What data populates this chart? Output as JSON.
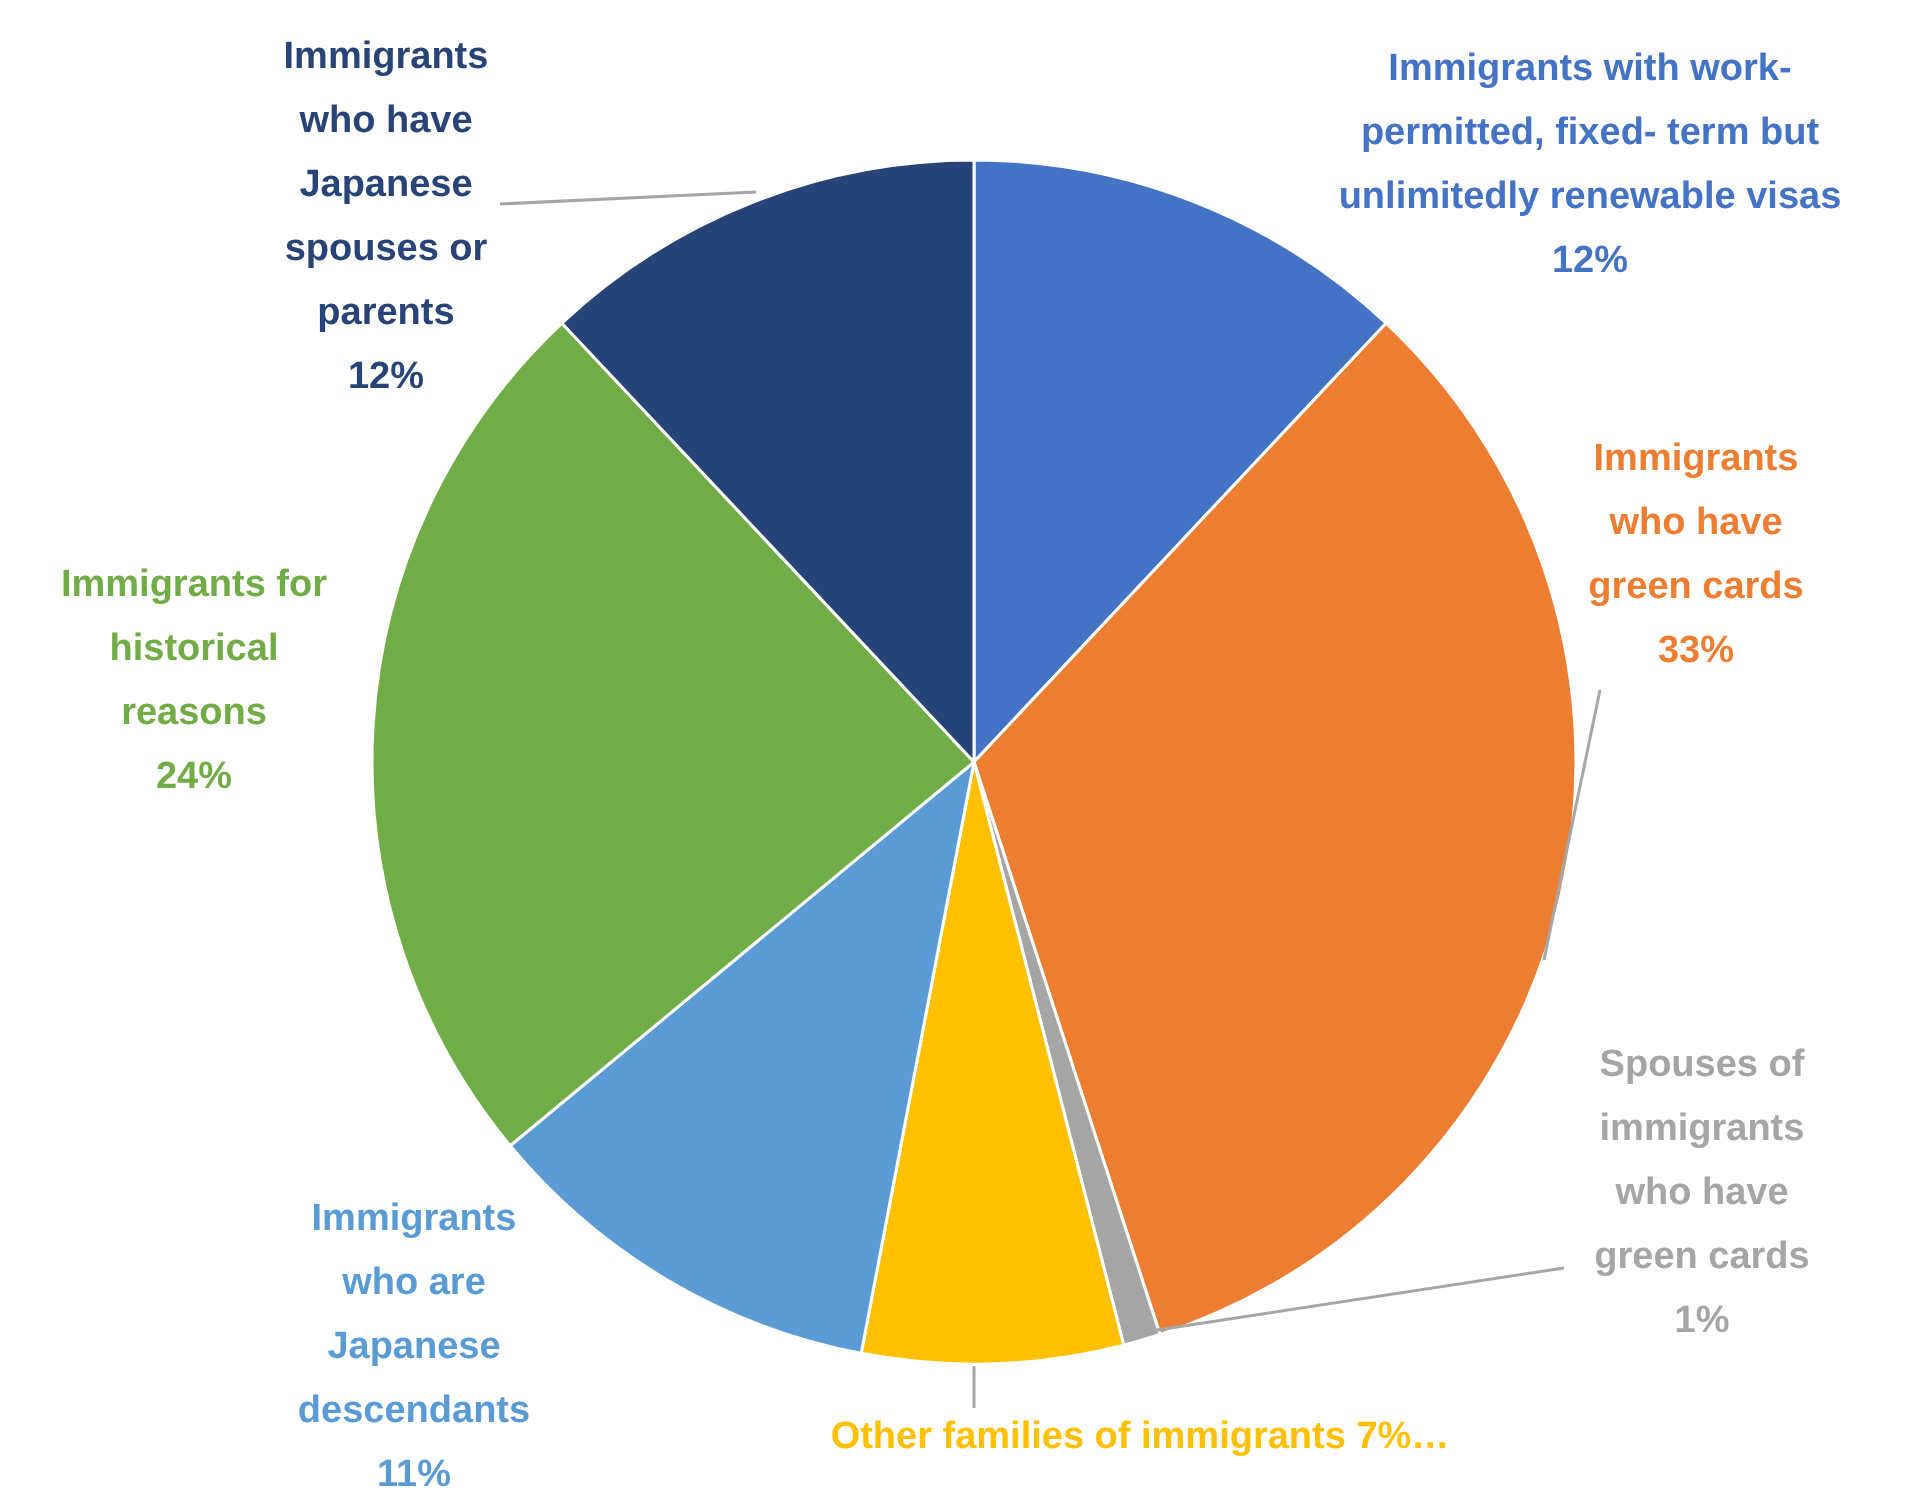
{
  "chart_data": {
    "type": "pie",
    "categories": [
      "Immigrants with work-permitted, fixed- term but unlimitedly renewable visas",
      "Immigrants who have green cards",
      "Spouses of immigrants who have green cards",
      "Other families of immigrants",
      "Immigrants who are Japanese descendants",
      "Immigrants for historical reasons",
      "Immigrants who have Japanese spouses or parents"
    ],
    "values": [
      12,
      33,
      1,
      7,
      11,
      24,
      12
    ],
    "value_labels": [
      "12%",
      "33%",
      "1%",
      "7%…",
      "11%",
      "24%",
      "12%"
    ],
    "colors": [
      "#4472c4",
      "#ed7d31",
      "#a5a5a5",
      "#ffc000",
      "#5b9bd5",
      "#70ad47",
      "#264478"
    ]
  }
}
